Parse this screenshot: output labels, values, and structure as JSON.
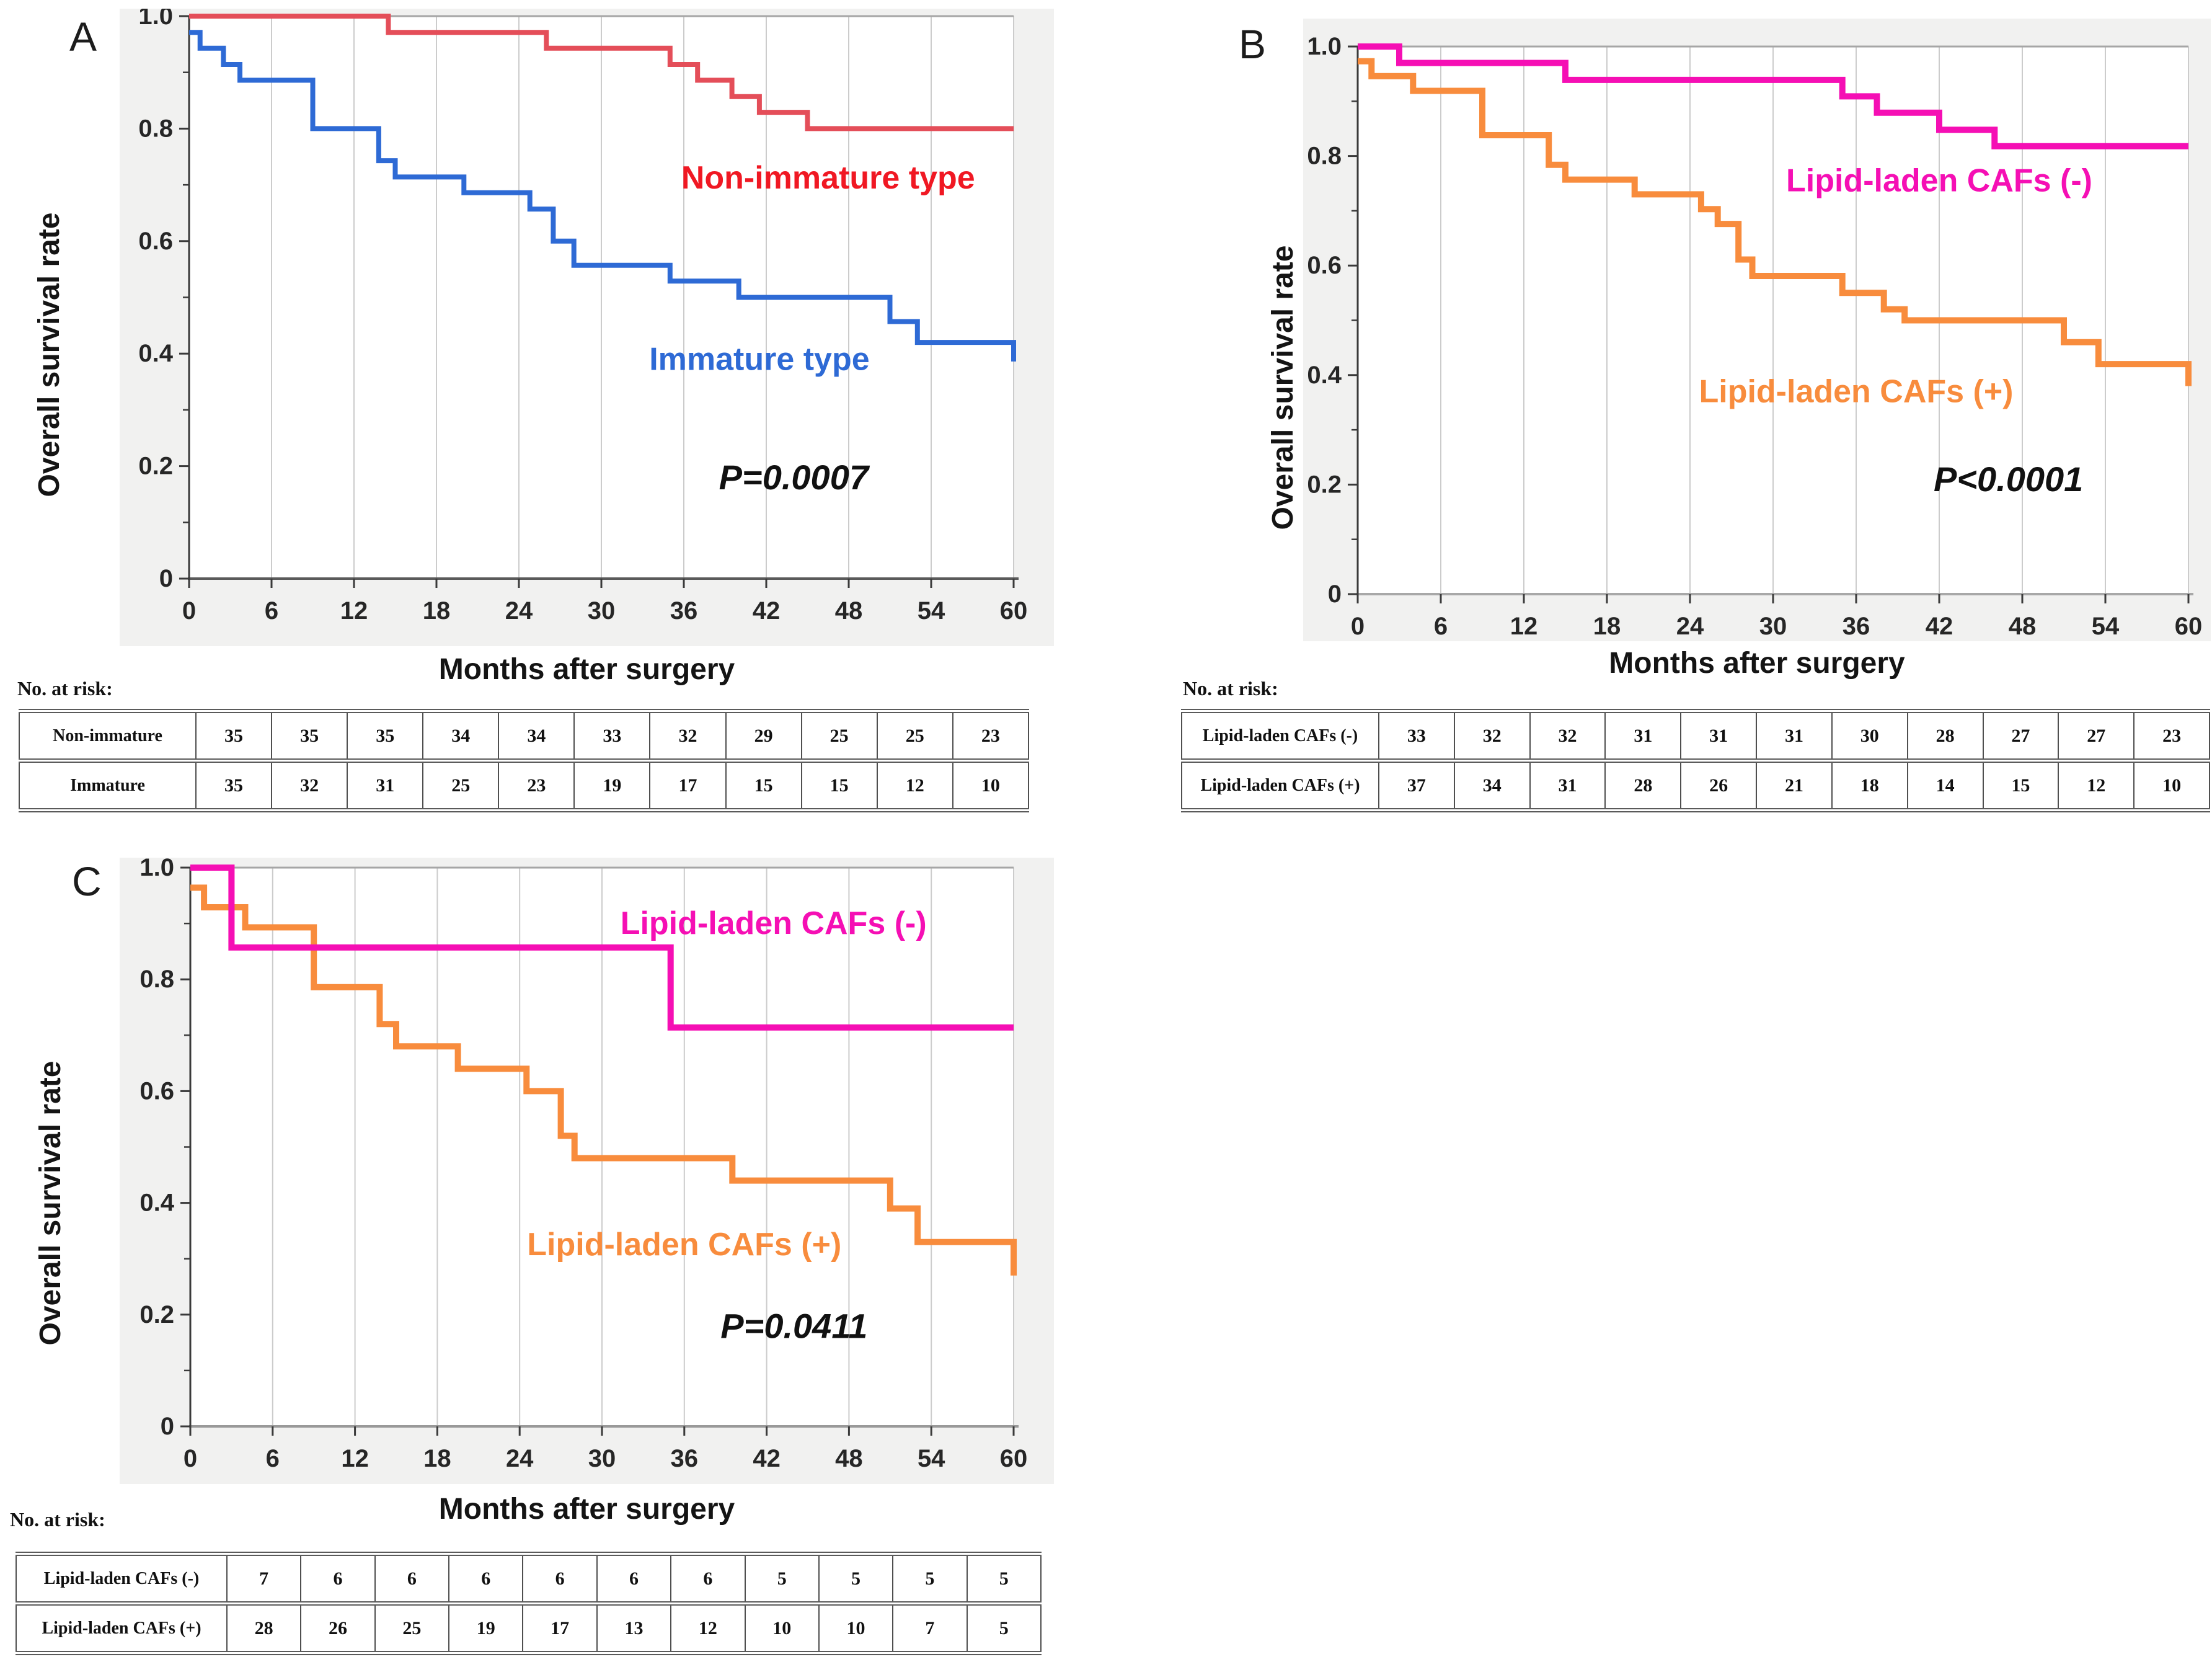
{
  "figure": {
    "page_bg": "#ffffff",
    "panel_bg": "#f1f1f0",
    "plot_bg": "#ffffff",
    "grid_color": "#cccccc",
    "top_line_color": "#a6a6a6",
    "axis_color": "#3a3a3a",
    "tick_text_color": "#262626",
    "annotation_color": "#111111"
  },
  "panels": [
    {
      "letter": "A",
      "risk_title": "No. at risk:",
      "risk_rows": [
        {
          "label": "Non-immature",
          "values": [
            "35",
            "35",
            "35",
            "34",
            "34",
            "33",
            "32",
            "29",
            "25",
            "25",
            "23"
          ]
        },
        {
          "label": "Immature",
          "values": [
            "35",
            "32",
            "31",
            "25",
            "23",
            "19",
            "17",
            "15",
            "15",
            "12",
            "10"
          ]
        }
      ]
    },
    {
      "letter": "B",
      "risk_title": "No. at risk:",
      "risk_rows": [
        {
          "label": "Lipid-laden CAFs (-)",
          "values": [
            "33",
            "32",
            "32",
            "31",
            "31",
            "31",
            "30",
            "28",
            "27",
            "27",
            "23"
          ]
        },
        {
          "label": "Lipid-laden CAFs (+)",
          "values": [
            "37",
            "34",
            "31",
            "28",
            "26",
            "21",
            "18",
            "14",
            "15",
            "12",
            "10"
          ]
        }
      ]
    },
    {
      "letter": "C",
      "risk_title": "No. at risk:",
      "risk_rows": [
        {
          "label": "Lipid-laden CAFs (-)",
          "values": [
            "7",
            "6",
            "6",
            "6",
            "6",
            "6",
            "6",
            "5",
            "5",
            "5",
            "5"
          ]
        },
        {
          "label": "Lipid-laden CAFs (+)",
          "values": [
            "28",
            "26",
            "25",
            "19",
            "17",
            "13",
            "12",
            "10",
            "10",
            "7",
            "5"
          ]
        }
      ]
    }
  ],
  "chart_data": [
    {
      "type": "line",
      "subtype": "kaplan-meier-step",
      "panel": "A",
      "xlabel": "Months after surgery",
      "ylabel": "Overall survival rate",
      "xlim": [
        0,
        60
      ],
      "ylim": [
        0,
        1.0
      ],
      "xticks": [
        0,
        6,
        12,
        18,
        24,
        30,
        36,
        42,
        48,
        54,
        60
      ],
      "ytick_values": [
        0,
        0.2,
        0.4,
        0.6,
        0.8,
        1.0
      ],
      "ytick_labels": [
        "0",
        "0.2",
        "0.4",
        "0.6",
        "0.8",
        "1.0"
      ],
      "y_minor_ticks": [
        0.1,
        0.3,
        0.5,
        0.7,
        0.9
      ],
      "grid": "vertical",
      "legend_position": "inline-labels",
      "line_width": 8,
      "bottom_axis_color": "#5a5a5a",
      "annotation": {
        "text": "P=0.0007",
        "x": 44,
        "y": 0.18
      },
      "series": [
        {
          "name": "Non-immature type",
          "color": "#e44e59",
          "label_color": "#f01823",
          "label_x": 46.5,
          "label_y": 0.712,
          "steps": [
            [
              0,
              1
            ],
            [
              14.5,
              1
            ],
            [
              14.5,
              0.971
            ],
            [
              26,
              0.971
            ],
            [
              26,
              0.943
            ],
            [
              35,
              0.943
            ],
            [
              35,
              0.914
            ],
            [
              37,
              0.914
            ],
            [
              37,
              0.886
            ],
            [
              39.5,
              0.886
            ],
            [
              39.5,
              0.857
            ],
            [
              41.5,
              0.857
            ],
            [
              41.5,
              0.829
            ],
            [
              45,
              0.829
            ],
            [
              45,
              0.8
            ],
            [
              60,
              0.8
            ]
          ]
        },
        {
          "name": "Immature type",
          "color": "#2e6ad5",
          "label_color": "#2e6ad5",
          "label_x": 41.5,
          "label_y": 0.39,
          "steps": [
            [
              0,
              0.971
            ],
            [
              0.8,
              0.971
            ],
            [
              0.8,
              0.943
            ],
            [
              2.5,
              0.943
            ],
            [
              2.5,
              0.914
            ],
            [
              3.7,
              0.914
            ],
            [
              3.7,
              0.886
            ],
            [
              9,
              0.886
            ],
            [
              9,
              0.8
            ],
            [
              13.8,
              0.8
            ],
            [
              13.8,
              0.743
            ],
            [
              15,
              0.743
            ],
            [
              15,
              0.714
            ],
            [
              20,
              0.714
            ],
            [
              20,
              0.686
            ],
            [
              24.8,
              0.686
            ],
            [
              24.8,
              0.657
            ],
            [
              26.5,
              0.657
            ],
            [
              26.5,
              0.6
            ],
            [
              28,
              0.6
            ],
            [
              28,
              0.557
            ],
            [
              35,
              0.557
            ],
            [
              35,
              0.529
            ],
            [
              40,
              0.529
            ],
            [
              40,
              0.5
            ],
            [
              51,
              0.5
            ],
            [
              51,
              0.457
            ],
            [
              53,
              0.457
            ],
            [
              53,
              0.42
            ],
            [
              60,
              0.42
            ],
            [
              60,
              0.386
            ]
          ]
        }
      ]
    },
    {
      "type": "line",
      "subtype": "kaplan-meier-step",
      "panel": "B",
      "xlabel": "Months after surgery",
      "ylabel": "Overall survival rate",
      "xlim": [
        0,
        60
      ],
      "ylim": [
        0,
        1.0
      ],
      "xticks": [
        0,
        6,
        12,
        18,
        24,
        30,
        36,
        42,
        48,
        54,
        60
      ],
      "ytick_values": [
        0,
        0.2,
        0.4,
        0.6,
        0.8,
        1.0
      ],
      "ytick_labels": [
        "0",
        "0.2",
        "0.4",
        "0.6",
        "0.8",
        "1.0"
      ],
      "y_minor_ticks": [
        0.1,
        0.3,
        0.5,
        0.7,
        0.9
      ],
      "grid": "vertical",
      "legend_position": "inline-labels",
      "line_width": 10,
      "bottom_axis_color": "#a8a8a8",
      "annotation": {
        "text": "P<0.0001",
        "x": 47,
        "y": 0.21
      },
      "series": [
        {
          "name": "Lipid-laden CAFs (-)",
          "color": "#f50fb4",
          "label_color": "#f50fb4",
          "label_x": 42,
          "label_y": 0.755,
          "steps": [
            [
              0,
              1
            ],
            [
              3,
              1
            ],
            [
              3,
              0.97
            ],
            [
              15,
              0.97
            ],
            [
              15,
              0.939
            ],
            [
              35,
              0.939
            ],
            [
              35,
              0.909
            ],
            [
              37.5,
              0.909
            ],
            [
              37.5,
              0.879
            ],
            [
              42,
              0.879
            ],
            [
              42,
              0.848
            ],
            [
              46,
              0.848
            ],
            [
              46,
              0.818
            ],
            [
              60,
              0.818
            ]
          ]
        },
        {
          "name": "Lipid-laden CAFs (+)",
          "color": "#f88c3d",
          "label_color": "#f88c3d",
          "label_x": 36,
          "label_y": 0.37,
          "steps": [
            [
              0,
              0.973
            ],
            [
              1,
              0.973
            ],
            [
              1,
              0.946
            ],
            [
              4,
              0.946
            ],
            [
              4,
              0.919
            ],
            [
              9,
              0.919
            ],
            [
              9,
              0.838
            ],
            [
              13.8,
              0.838
            ],
            [
              13.8,
              0.784
            ],
            [
              15,
              0.784
            ],
            [
              15,
              0.757
            ],
            [
              20,
              0.757
            ],
            [
              20,
              0.73
            ],
            [
              24.8,
              0.73
            ],
            [
              24.8,
              0.703
            ],
            [
              26,
              0.703
            ],
            [
              26,
              0.676
            ],
            [
              27.5,
              0.676
            ],
            [
              27.5,
              0.611
            ],
            [
              28.5,
              0.611
            ],
            [
              28.5,
              0.581
            ],
            [
              35,
              0.581
            ],
            [
              35,
              0.55
            ],
            [
              38,
              0.55
            ],
            [
              38,
              0.52
            ],
            [
              39.5,
              0.52
            ],
            [
              39.5,
              0.5
            ],
            [
              51,
              0.5
            ],
            [
              51,
              0.46
            ],
            [
              53.5,
              0.46
            ],
            [
              53.5,
              0.42
            ],
            [
              60,
              0.42
            ],
            [
              60,
              0.38
            ]
          ]
        }
      ]
    },
    {
      "type": "line",
      "subtype": "kaplan-meier-step",
      "panel": "C",
      "xlabel": "Months after surgery",
      "ylabel": "Overall survival rate",
      "xlim": [
        0,
        60
      ],
      "ylim": [
        0,
        1.0
      ],
      "xticks": [
        0,
        6,
        12,
        18,
        24,
        30,
        36,
        42,
        48,
        54,
        60
      ],
      "ytick_values": [
        0,
        0.2,
        0.4,
        0.6,
        0.8,
        1.0
      ],
      "ytick_labels": [
        "0",
        "0.2",
        "0.4",
        "0.6",
        "0.8",
        "1.0"
      ],
      "y_minor_ticks": [
        0.1,
        0.3,
        0.5,
        0.7,
        0.9
      ],
      "grid": "vertical",
      "legend_position": "inline-labels",
      "line_width": 10,
      "bottom_axis_color": "#999999",
      "annotation": {
        "text": "P=0.0411",
        "x": 44,
        "y": 0.18
      },
      "series": [
        {
          "name": "Lipid-laden CAFs (-)",
          "color": "#f50fb4",
          "label_color": "#f50fb4",
          "label_x": 42.5,
          "label_y": 0.9,
          "steps": [
            [
              0,
              1
            ],
            [
              3,
              1
            ],
            [
              3,
              0.857
            ],
            [
              35,
              0.857
            ],
            [
              35,
              0.714
            ],
            [
              60,
              0.714
            ]
          ]
        },
        {
          "name": "Lipid-laden CAFs (+)",
          "color": "#f88c3d",
          "label_color": "#f88c3d",
          "label_x": 36,
          "label_y": 0.325,
          "steps": [
            [
              0,
              0.964
            ],
            [
              1,
              0.964
            ],
            [
              1,
              0.929
            ],
            [
              4,
              0.929
            ],
            [
              4,
              0.893
            ],
            [
              9,
              0.893
            ],
            [
              9,
              0.786
            ],
            [
              13.8,
              0.786
            ],
            [
              13.8,
              0.72
            ],
            [
              15,
              0.72
            ],
            [
              15,
              0.68
            ],
            [
              19.5,
              0.68
            ],
            [
              19.5,
              0.64
            ],
            [
              24.5,
              0.64
            ],
            [
              24.5,
              0.6
            ],
            [
              27,
              0.6
            ],
            [
              27,
              0.52
            ],
            [
              28,
              0.52
            ],
            [
              28,
              0.48
            ],
            [
              39.5,
              0.48
            ],
            [
              39.5,
              0.44
            ],
            [
              51,
              0.44
            ],
            [
              51,
              0.39
            ],
            [
              53,
              0.39
            ],
            [
              53,
              0.33
            ],
            [
              60,
              0.33
            ],
            [
              60,
              0.27
            ]
          ]
        }
      ]
    }
  ]
}
